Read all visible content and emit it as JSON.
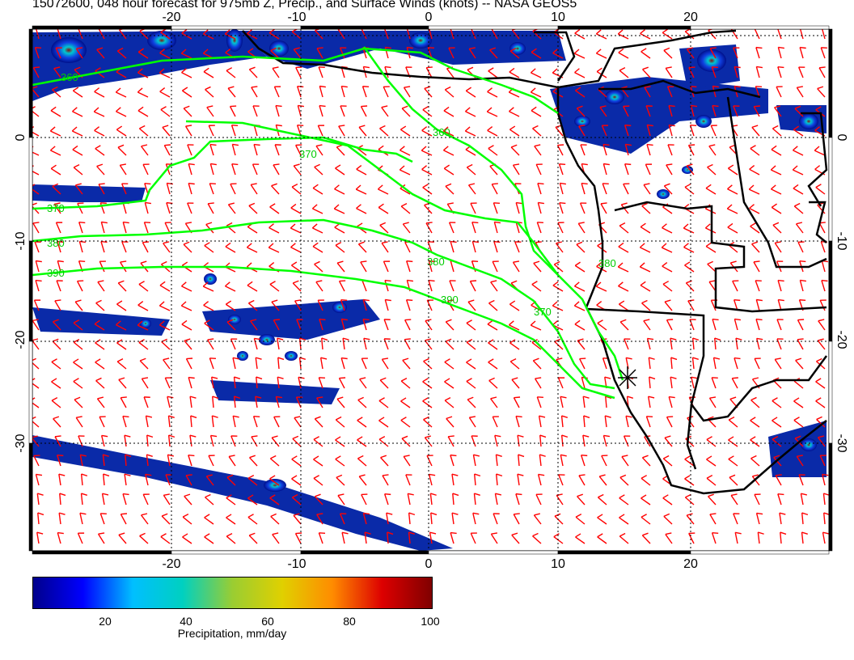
{
  "title": "15072600, 048 hour forecast for 975mb Z, Precip., and Surface Winds (knots) -- NASA GEOS5",
  "map": {
    "lon_range": [
      -30,
      30
    ],
    "lat_range": [
      -40,
      10
    ],
    "lon_ticks": [
      "-20",
      "-10",
      "0",
      "10",
      "20"
    ],
    "lat_ticks": [
      "0",
      "-10",
      "-20",
      "-30"
    ],
    "contour_labels": [
      "360",
      "360",
      "370",
      "370",
      "380",
      "380",
      "390",
      "390",
      "370",
      "380"
    ],
    "contour_color": "#00ff00",
    "barb_color": "#ff0000",
    "coast_color": "#000000"
  },
  "colorbar": {
    "label": "Precipitation, mm/day",
    "ticks": [
      "20",
      "40",
      "60",
      "80",
      "100"
    ],
    "range": [
      0,
      100
    ],
    "colors": [
      "#00008b",
      "#0000ff",
      "#00bfff",
      "#00d0c0",
      "#9acd32",
      "#e0d000",
      "#ff8c00",
      "#dd0000",
      "#800000"
    ]
  }
}
